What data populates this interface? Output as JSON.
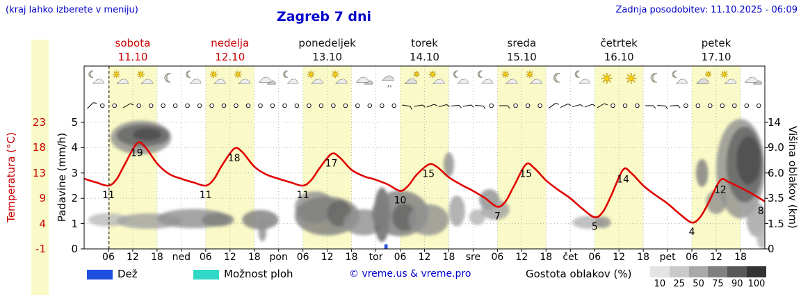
{
  "header": {
    "hint": "(kraj lahko izberete v meniju)",
    "title": "Zagreb 7 dni",
    "updated": "Zadnja posodobitev: 11.10.2025 - 06:09"
  },
  "axes": {
    "temperature": {
      "label": "Temperatura (°C)",
      "ticks": [
        "23",
        "18",
        "13",
        "9",
        "4",
        "-1"
      ],
      "color": "#cc0000"
    },
    "precipitation": {
      "label": "Padavine (mm/h)",
      "ticks": [
        "5",
        "4",
        "3",
        "2",
        "1",
        "0"
      ]
    },
    "cloud_height": {
      "label": "Višina oblakov (km)",
      "ticks": [
        "14",
        "9.0",
        "6.0",
        "3.5",
        "1.5",
        "0"
      ]
    }
  },
  "days": [
    {
      "name": "sobota",
      "date": "11.10",
      "weekend": true
    },
    {
      "name": "nedelja",
      "date": "12.10",
      "weekend": true
    },
    {
      "name": "ponedeljek",
      "date": "13.10",
      "weekend": false
    },
    {
      "name": "torek",
      "date": "14.10",
      "weekend": false
    },
    {
      "name": "sreda",
      "date": "15.10",
      "weekend": false
    },
    {
      "name": "četrtek",
      "date": "16.10",
      "weekend": false
    },
    {
      "name": "petek",
      "date": "17.10",
      "weekend": false
    }
  ],
  "time_axis": {
    "hour_labels": [
      "06",
      "12",
      "18"
    ],
    "midnight_labels": [
      "ned",
      "pon",
      "tor",
      "sre",
      "čet",
      "pet"
    ]
  },
  "legend": {
    "rain_label": "Dež",
    "rain_color": "#1f4fe0",
    "showers_label": "Možnost ploh",
    "showers_color": "#2fd9c5",
    "copyright": "© vreme.us & vreme.pro",
    "cloud_density_label": "Gostota oblakov (%)",
    "cloud_scale": [
      {
        "value": "10",
        "color": "#e4e4e4"
      },
      {
        "value": "25",
        "color": "#c9c9c9"
      },
      {
        "value": "50",
        "color": "#a9a9a9"
      },
      {
        "value": "75",
        "color": "#808080"
      },
      {
        "value": "90",
        "color": "#585858"
      },
      {
        "value": "100",
        "color": "#333333"
      }
    ]
  },
  "chart_data": {
    "type": "line",
    "title": "Zagreb 7 dni",
    "x_axis": "hours from 2025-10-11 00:00, 7 days",
    "temperature_axis_range": [
      -1,
      23
    ],
    "precipitation_axis_range": [
      0,
      5
    ],
    "cloud_height_ticks_km": [
      0,
      1.5,
      3.5,
      6,
      9,
      14
    ],
    "daylight_hours": [
      6,
      18
    ],
    "current_time_hour": 6.15,
    "temperature_series": {
      "color": "#e00000",
      "points": [
        [
          0,
          12.3
        ],
        [
          3,
          11.6
        ],
        [
          6,
          11
        ],
        [
          8,
          12.2
        ],
        [
          10,
          15
        ],
        [
          13,
          19
        ],
        [
          15,
          18.4
        ],
        [
          18,
          15.2
        ],
        [
          21,
          13.2
        ],
        [
          24,
          12.3
        ],
        [
          27,
          11.6
        ],
        [
          30,
          11
        ],
        [
          32,
          12.2
        ],
        [
          34,
          14.8
        ],
        [
          37,
          18
        ],
        [
          39,
          17.4
        ],
        [
          42,
          14.6
        ],
        [
          45,
          13.1
        ],
        [
          48,
          12.3
        ],
        [
          51,
          11.6
        ],
        [
          54,
          11
        ],
        [
          56,
          12
        ],
        [
          58,
          14.2
        ],
        [
          61,
          17
        ],
        [
          63,
          16.4
        ],
        [
          66,
          14
        ],
        [
          69,
          12.8
        ],
        [
          72,
          12.1
        ],
        [
          75,
          11.2
        ],
        [
          78,
          10
        ],
        [
          80,
          11
        ],
        [
          82,
          13
        ],
        [
          85,
          15
        ],
        [
          87,
          14.6
        ],
        [
          90,
          12.6
        ],
        [
          93,
          11.2
        ],
        [
          96,
          10
        ],
        [
          99,
          8.6
        ],
        [
          102,
          7
        ],
        [
          104,
          8
        ],
        [
          106,
          10.8
        ],
        [
          109,
          15
        ],
        [
          111,
          14.4
        ],
        [
          114,
          12
        ],
        [
          117,
          10.2
        ],
        [
          120,
          8.6
        ],
        [
          123,
          6.6
        ],
        [
          126,
          5
        ],
        [
          128,
          6
        ],
        [
          130,
          9
        ],
        [
          133,
          14
        ],
        [
          135,
          13.4
        ],
        [
          138,
          11
        ],
        [
          141,
          9.2
        ],
        [
          144,
          7.6
        ],
        [
          147,
          5.6
        ],
        [
          150,
          4
        ],
        [
          152,
          5
        ],
        [
          154,
          7.6
        ],
        [
          157,
          12
        ],
        [
          159,
          11.7
        ],
        [
          162,
          10.6
        ],
        [
          165,
          9.4
        ],
        [
          168,
          8
        ]
      ]
    },
    "temperature_labels": [
      {
        "hour": 6,
        "value": 11
      },
      {
        "hour": 13,
        "value": 19
      },
      {
        "hour": 30,
        "value": 11
      },
      {
        "hour": 37,
        "value": 18
      },
      {
        "hour": 54,
        "value": 11
      },
      {
        "hour": 61,
        "value": 17
      },
      {
        "hour": 78,
        "value": 10
      },
      {
        "hour": 85,
        "value": 15
      },
      {
        "hour": 102,
        "value": 7
      },
      {
        "hour": 109,
        "value": 15
      },
      {
        "hour": 126,
        "value": 5
      },
      {
        "hour": 133,
        "value": 14
      },
      {
        "hour": 150,
        "value": 4
      },
      {
        "hour": 157,
        "value": 12
      },
      {
        "hour": 167,
        "value": 8
      }
    ],
    "rain_bars": [
      {
        "hour": 74.5,
        "mm": 0.18
      }
    ],
    "weather_icons": [
      "moon-cloud",
      "sun-cloud",
      "sun-cloud",
      "moon",
      "moon-cloud",
      "sun-cloud",
      "sun-cloud",
      "cloud",
      "moon-cloud",
      "sun-cloud",
      "sun-cloud",
      "cloud",
      "cloud-drizzle",
      "cloud-sun",
      "sun-cloud",
      "moon-cloud",
      "moon-cloud",
      "sun-cloud",
      "sun-cloud",
      "moon",
      "moon-cloud",
      "sun",
      "sun",
      "moon",
      "moon-cloud",
      "cloud-sun",
      "sun-cloud",
      "cloud"
    ],
    "wind_symbols": [
      45,
      "c",
      "c",
      60,
      "c",
      "c",
      "c",
      "c",
      "c",
      "c",
      "c",
      "c",
      "c",
      "c",
      "c",
      "c",
      "c",
      "c",
      "c",
      "c",
      "c",
      "c",
      "c",
      "c",
      "c",
      "c",
      100,
      80,
      70,
      75,
      85,
      80,
      95,
      "c",
      90,
      "c",
      "c",
      "c",
      55,
      65,
      75,
      70,
      60,
      "c",
      "c",
      "c",
      90,
      95,
      85,
      "c",
      "c",
      "c",
      "c",
      "c",
      "c",
      "c"
    ],
    "cloud_regions": [
      {
        "hour": 14,
        "km": 11,
        "rh": 7.5,
        "rkm": 3,
        "density": 50
      },
      {
        "hour": 14.5,
        "km": 11.4,
        "rh": 6.5,
        "rkm": 2.2,
        "density": 75
      },
      {
        "hour": 15.5,
        "km": 11.6,
        "rh": 3.5,
        "rkm": 1.2,
        "density": 90
      },
      {
        "hour": 6,
        "km": 1.8,
        "rh": 5,
        "rkm": 0.5,
        "density": 25
      },
      {
        "hour": 16,
        "km": 1.7,
        "rh": 8,
        "rkm": 0.55,
        "density": 40
      },
      {
        "hour": 27,
        "km": 1.9,
        "rh": 9,
        "rkm": 0.7,
        "density": 50
      },
      {
        "hour": 33,
        "km": 1.8,
        "rh": 4,
        "rkm": 0.5,
        "density": 60
      },
      {
        "hour": 43.5,
        "km": 1.8,
        "rh": 4.5,
        "rkm": 0.7,
        "density": 60
      },
      {
        "hour": 44,
        "km": 1.1,
        "rh": 1,
        "rkm": 0.7,
        "density": 50
      },
      {
        "hour": 57,
        "km": 2.8,
        "rh": 5,
        "rkm": 1.3,
        "density": 50
      },
      {
        "hour": 60,
        "km": 2.1,
        "rh": 8,
        "rkm": 1.4,
        "density": 60
      },
      {
        "hour": 63,
        "km": 2.3,
        "rh": 3,
        "rkm": 1,
        "density": 75
      },
      {
        "hour": 69,
        "km": 1.6,
        "rh": 5,
        "rkm": 0.9,
        "density": 50
      },
      {
        "hour": 73.5,
        "km": 2.2,
        "rh": 2,
        "rkm": 2,
        "density": 75
      },
      {
        "hour": 78,
        "km": 2.3,
        "rh": 7,
        "rkm": 1.7,
        "density": 60
      },
      {
        "hour": 79,
        "km": 2,
        "rh": 3,
        "rkm": 1,
        "density": 75
      },
      {
        "hour": 85,
        "km": 1.8,
        "rh": 5,
        "rkm": 1.1,
        "density": 50
      },
      {
        "hour": 90,
        "km": 7,
        "rh": 1.3,
        "rkm": 1.4,
        "density": 50
      },
      {
        "hour": 92,
        "km": 2.5,
        "rh": 2,
        "rkm": 1.2,
        "density": 40
      },
      {
        "hour": 97,
        "km": 2,
        "rh": 2,
        "rkm": 0.6,
        "density": 30
      },
      {
        "hour": 100,
        "km": 3.4,
        "rh": 2.5,
        "rkm": 0.9,
        "density": 50
      },
      {
        "hour": 101.5,
        "km": 2.6,
        "rh": 3.5,
        "rkm": 0.8,
        "density": 40
      },
      {
        "hour": 124.5,
        "km": 1.6,
        "rh": 4,
        "rkm": 0.45,
        "density": 30
      },
      {
        "hour": 128,
        "km": 1.6,
        "rh": 2,
        "rkm": 0.4,
        "density": 50
      },
      {
        "hour": 152.5,
        "km": 6,
        "rh": 1.5,
        "rkm": 1.5,
        "density": 60
      },
      {
        "hour": 156,
        "km": 3.2,
        "rh": 2.5,
        "rkm": 1,
        "density": 50
      },
      {
        "hour": 162,
        "km": 6.5,
        "rh": 6,
        "rkm": 5.5,
        "density": 50
      },
      {
        "hour": 163,
        "km": 7,
        "rh": 4.5,
        "rkm": 4.5,
        "density": 75
      },
      {
        "hour": 164,
        "km": 7.5,
        "rh": 3,
        "rkm": 3,
        "density": 90
      },
      {
        "hour": 166,
        "km": 1.8,
        "rh": 2.5,
        "rkm": 1.2,
        "density": 40
      },
      {
        "hour": 167.5,
        "km": 0.6,
        "rh": 1.5,
        "rkm": 0.6,
        "density": 30
      }
    ]
  }
}
